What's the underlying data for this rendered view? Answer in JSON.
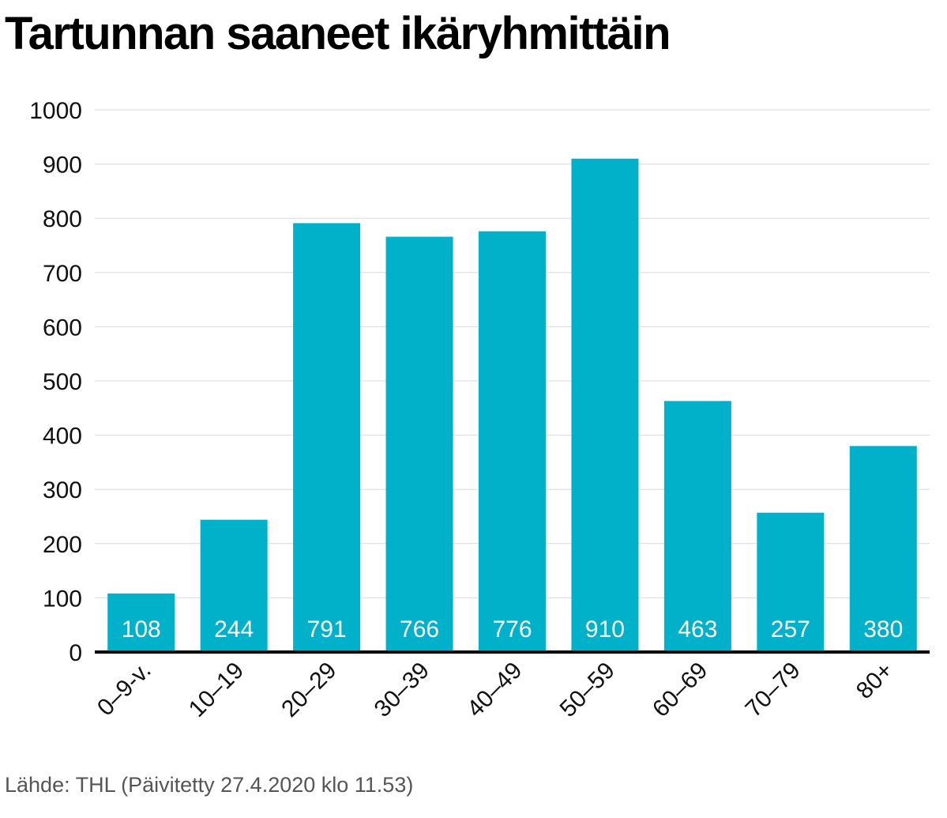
{
  "chart_data": {
    "type": "bar",
    "title": "Tartunnan saaneet ikäryhmittäin",
    "source": "Lähde: THL (Päivitetty 27.4.2020 klo 11.53)",
    "categories": [
      "0–9-v.",
      "10–19",
      "20–29",
      "30–39",
      "40–49",
      "50–59",
      "60–69",
      "70–79",
      "80+"
    ],
    "values": [
      108,
      244,
      791,
      766,
      776,
      910,
      463,
      257,
      380
    ],
    "data_labels": [
      "108",
      "244",
      "791",
      "766",
      "776",
      "910",
      "463",
      "257",
      "380"
    ],
    "ylim": [
      0,
      1000
    ],
    "yticks": [
      0,
      100,
      200,
      300,
      400,
      500,
      600,
      700,
      800,
      900,
      1000
    ],
    "ytick_labels": [
      "0",
      "100",
      "200",
      "300",
      "400",
      "500",
      "600",
      "700",
      "800",
      "900",
      "1000"
    ],
    "xlabel": "",
    "ylabel": "",
    "grid": true,
    "bar_color": "#00b1c9",
    "grid_color": "#d9d9d9",
    "axis_color": "#000000"
  }
}
